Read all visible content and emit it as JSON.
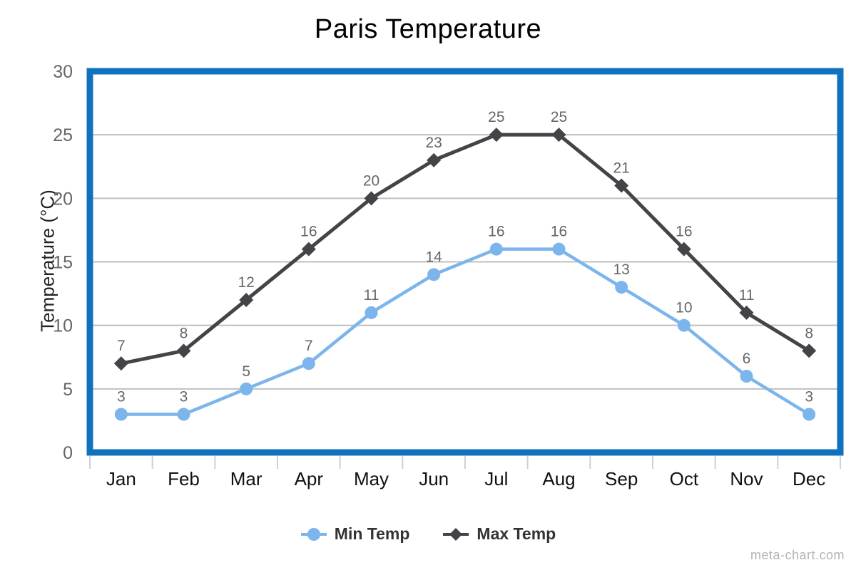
{
  "chart": {
    "title": "Paris Temperature",
    "y_axis_title": "Temperature (°C)",
    "watermark": "meta-chart.com"
  },
  "chart_data": {
    "type": "line",
    "title": "Paris Temperature",
    "xlabel": "",
    "ylabel": "Temperature (°C)",
    "categories": [
      "Jan",
      "Feb",
      "Mar",
      "Apr",
      "May",
      "Jun",
      "Jul",
      "Aug",
      "Sep",
      "Oct",
      "Nov",
      "Dec"
    ],
    "series": [
      {
        "name": "Min Temp",
        "marker": "circle",
        "color": "#7cb5ec",
        "values": [
          3,
          3,
          5,
          7,
          11,
          14,
          16,
          16,
          13,
          10,
          6,
          3
        ]
      },
      {
        "name": "Max Temp",
        "marker": "diamond",
        "color": "#434348",
        "values": [
          7,
          8,
          12,
          16,
          20,
          23,
          25,
          25,
          21,
          16,
          11,
          8
        ]
      }
    ],
    "ylim": [
      0,
      30
    ],
    "ytick_step": 5,
    "grid": true,
    "data_labels": true,
    "legend_position": "bottom"
  },
  "style": {
    "plot_border_color": "#1072bd",
    "gridline_color": "#c0c0c0",
    "axis_tick_color": "#c8d2e0",
    "y_label_color": "#666666",
    "x_label_color": "#111111",
    "data_label_color": "#666666",
    "legend_text_color": "#333333",
    "title_color": "#000000",
    "watermark_color": "#b3b3b3"
  }
}
